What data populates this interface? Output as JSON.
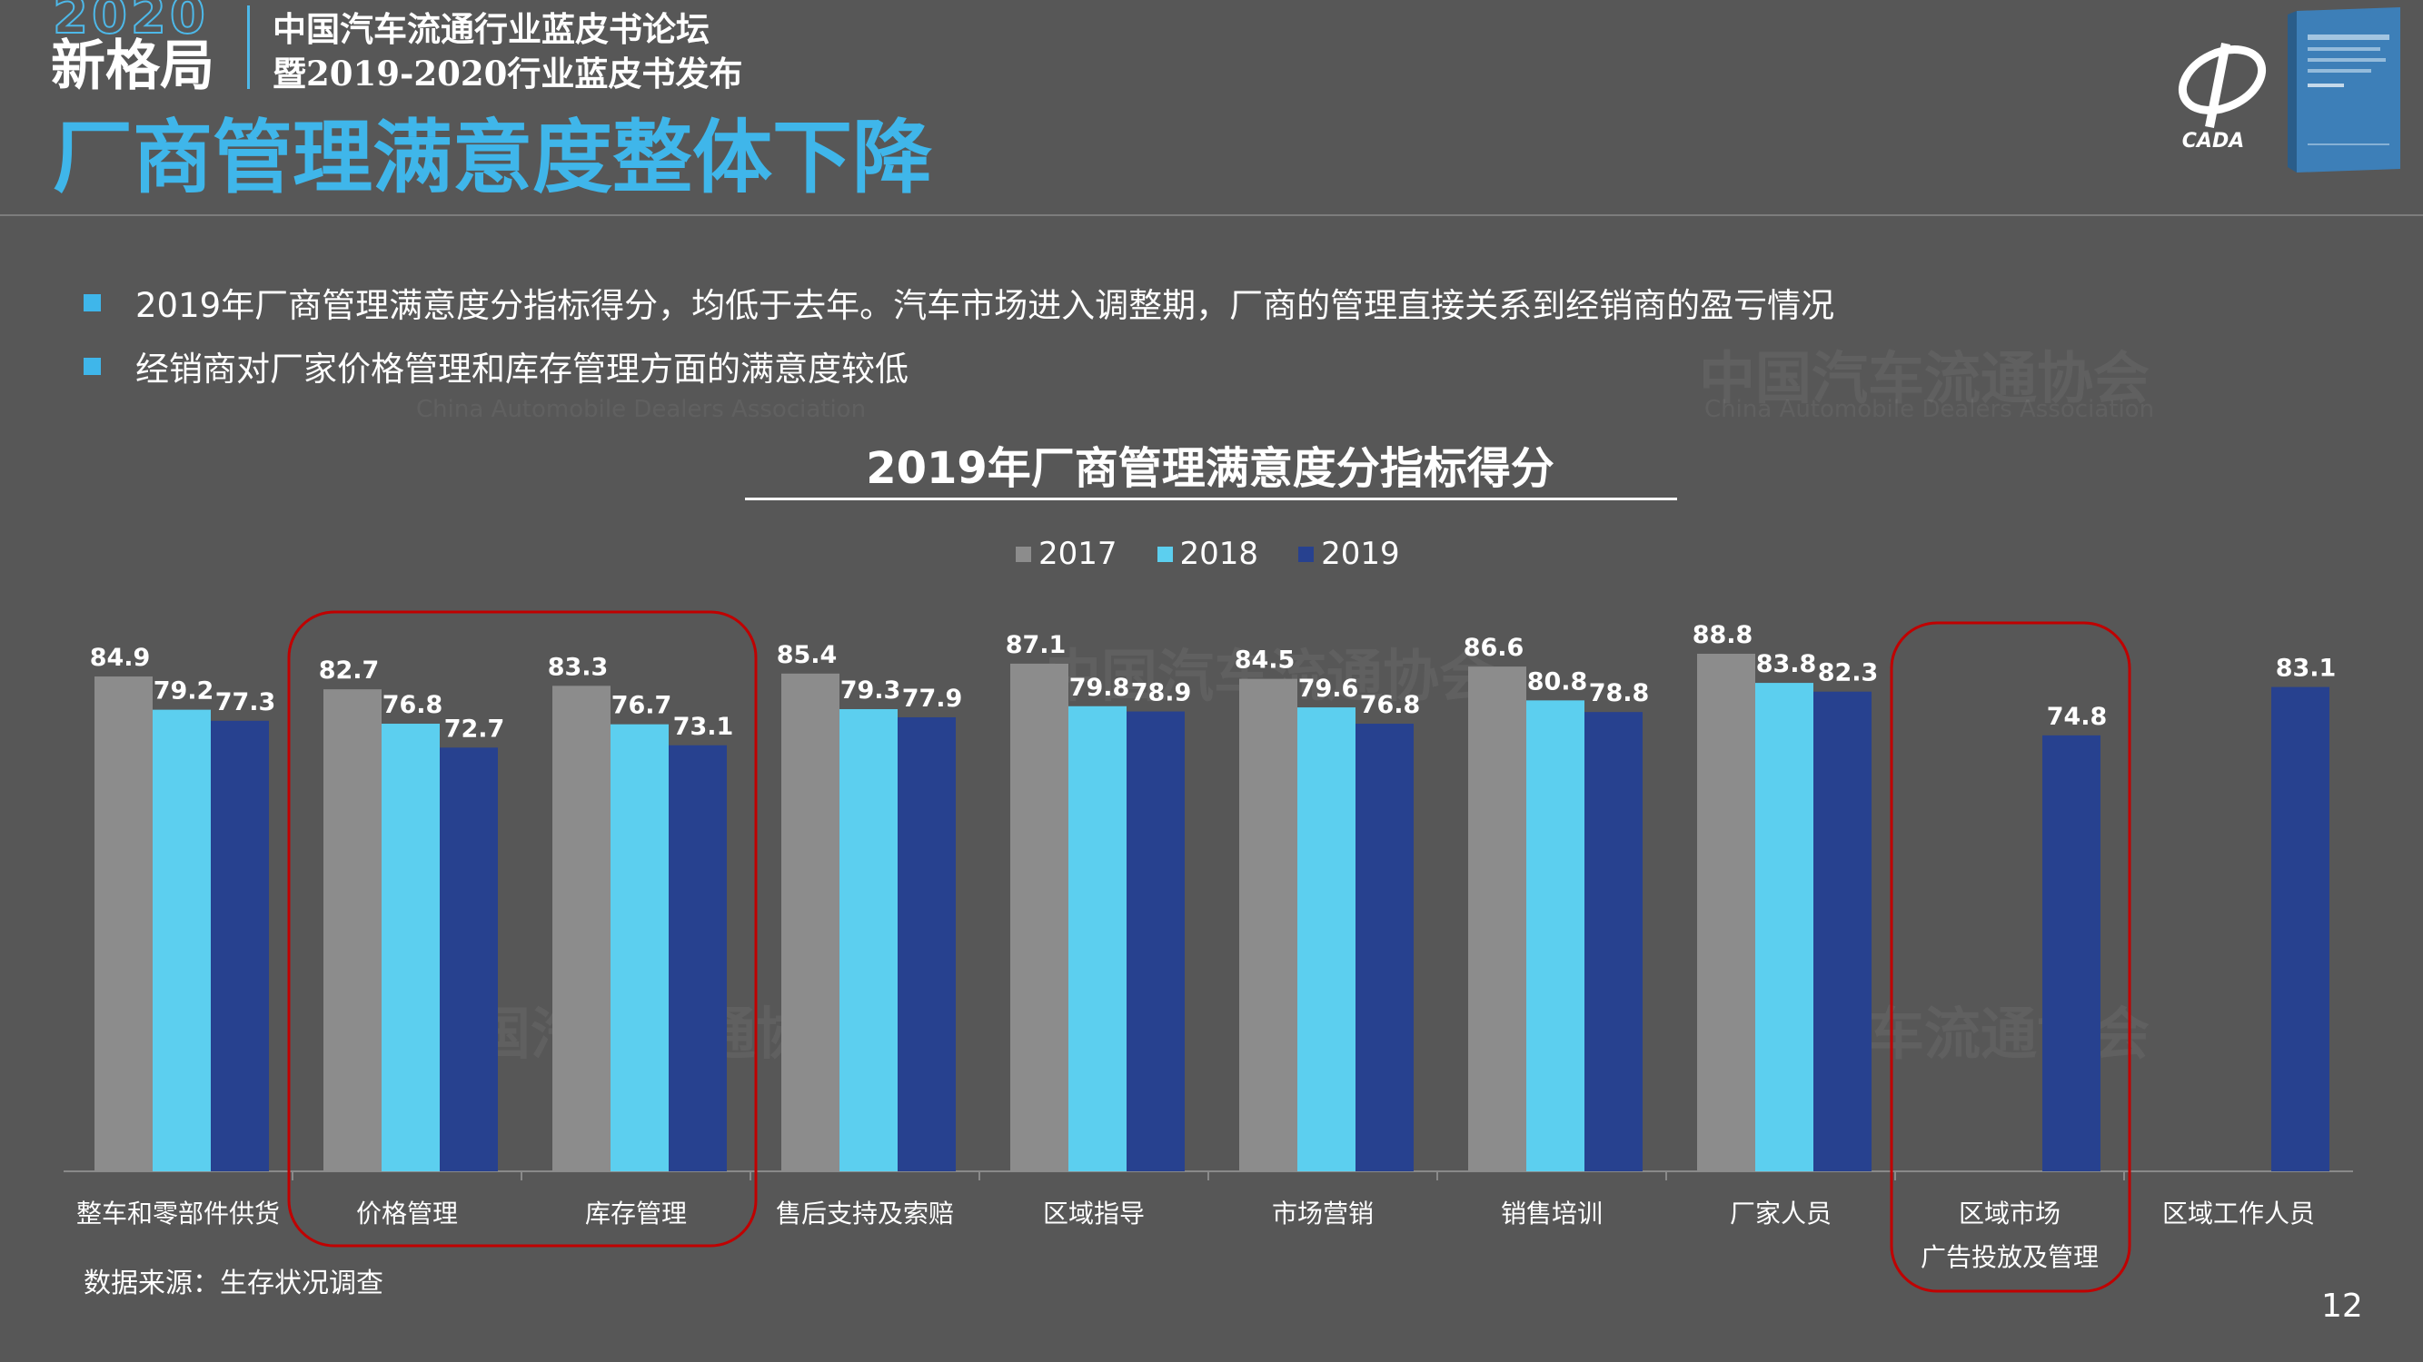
{
  "header": {
    "logo_year": "2020",
    "logo_text": "新格局",
    "forum_line1": "中国汽车流通行业蓝皮书论坛",
    "forum_line2": "暨2019-2020行业蓝皮书发布",
    "page_title": "厂商管理满意度整体下降",
    "logo_wordmark": "CADA"
  },
  "watermark": {
    "name": "中国汽车流通协会",
    "english": "China Automobile Dealers Association"
  },
  "bullets": [
    "2019年厂商管理满意度分指标得分，均低于去年。汽车市场进入调整期，厂商的管理直接关系到经销商的盈亏情况",
    "经销商对厂家价格管理和库存管理方面的满意度较低"
  ],
  "colors": {
    "accent": "#3fb6ea",
    "background": "#575757",
    "highlight": "#c00000"
  },
  "chart_data": {
    "type": "bar",
    "title": "2019年厂商管理满意度分指标得分",
    "categories": [
      "整车和零部件供货",
      "价格管理",
      "库存管理",
      "售后支持及索赔",
      "区域指导",
      "市场营销",
      "销售培训",
      "厂家人员",
      "区域市场\n广告投放及管理",
      "区域工作人员"
    ],
    "series": [
      {
        "name": "2017",
        "color": "#8c8c8c",
        "values": [
          84.9,
          82.7,
          83.3,
          85.4,
          87.1,
          84.5,
          86.6,
          88.8,
          null,
          null
        ]
      },
      {
        "name": "2018",
        "color": "#5ccfef",
        "values": [
          79.2,
          76.8,
          76.7,
          79.3,
          79.8,
          79.6,
          80.8,
          83.8,
          null,
          null
        ]
      },
      {
        "name": "2019",
        "color": "#27418f",
        "values": [
          77.3,
          72.7,
          73.1,
          77.9,
          78.9,
          76.8,
          78.8,
          82.3,
          74.8,
          83.1
        ]
      }
    ],
    "ylim": [
      0,
      88.8
    ],
    "legend_position": "top",
    "highlighted_categories": [
      "价格管理",
      "库存管理",
      "区域市场\n广告投放及管理"
    ],
    "source": "数据来源：生存状况调查"
  },
  "page_number": "12"
}
